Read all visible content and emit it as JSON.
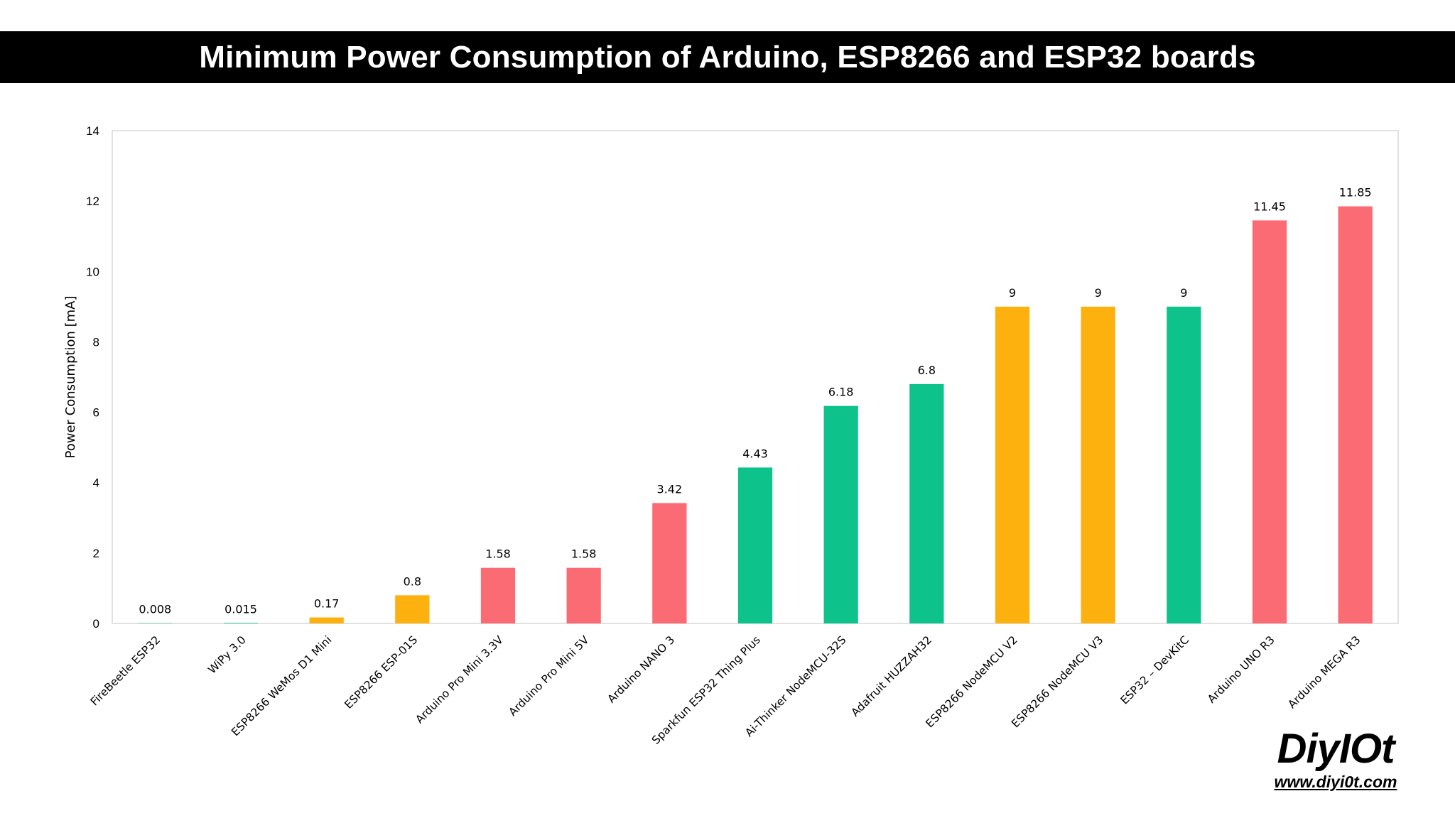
{
  "title": "Minimum Power Consumption of Arduino, ESP8266 and ESP32 boards",
  "logo": {
    "name": "DiyIOt",
    "url": "www.diyi0t.com"
  },
  "colors": {
    "esp32": "#0ec28c",
    "esp8266": "#fdb10f",
    "arduino": "#fb6b73"
  },
  "chart_data": {
    "type": "bar",
    "ylabel": "Power Consumption [mA]",
    "xlabel": "",
    "ylim": [
      0,
      14
    ],
    "yticks": [
      0,
      2,
      4,
      6,
      8,
      10,
      12,
      14
    ],
    "grid": false,
    "legend": "none",
    "categories": [
      "FireBeetle ESP32",
      "WiPy 3.0",
      "ESP8266 WeMos D1 Mini",
      "ESP8266 ESP-01S",
      "Arduino Pro Mini 3.3V",
      "Arduino Pro Mini 5V",
      "Arduino NANO 3",
      "Sparkfun ESP32 Thing Plus",
      "Ai-Thinker NodeMCU-32S",
      "Adafruit HUZZAH32",
      "ESP8266 NodeMCU V2",
      "ESP8266 NodeMCU V3",
      "ESP32 – DevKitC",
      "Arduino UNO R3",
      "Arduino MEGA R3"
    ],
    "values": [
      0.008,
      0.015,
      0.17,
      0.8,
      1.58,
      1.58,
      3.42,
      4.43,
      6.18,
      6.8,
      9,
      9,
      9,
      11.45,
      11.85
    ],
    "value_labels": [
      "0.008",
      "0.015",
      "0.17",
      "0.8",
      "1.58",
      "1.58",
      "3.42",
      "4.43",
      "6.18",
      "6.8",
      "9",
      "9",
      "9",
      "11.45",
      "11.85"
    ],
    "bar_groups": [
      "esp32",
      "esp32",
      "esp8266",
      "esp8266",
      "arduino",
      "arduino",
      "arduino",
      "esp32",
      "esp32",
      "esp32",
      "esp8266",
      "esp8266",
      "esp32",
      "arduino",
      "arduino"
    ]
  }
}
